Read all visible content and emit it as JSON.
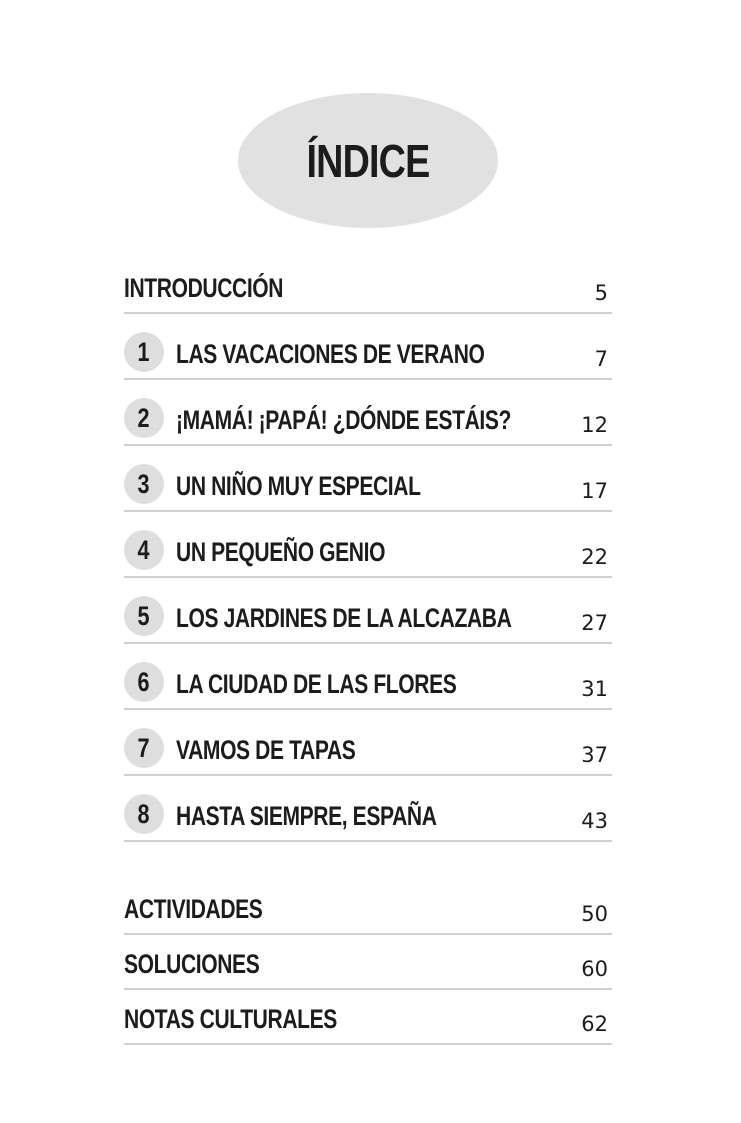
{
  "title": "ÍNDICE",
  "intro": {
    "label": "INTRODUCCIÓN",
    "page": "5"
  },
  "chapters": [
    {
      "number": "1",
      "label": "LAS VACACIONES DE VERANO",
      "page": "7"
    },
    {
      "number": "2",
      "label": "¡MAMÁ! ¡PAPÁ! ¿DÓNDE ESTÁIS?",
      "page": "12"
    },
    {
      "number": "3",
      "label": "UN NIÑO MUY ESPECIAL",
      "page": "17"
    },
    {
      "number": "4",
      "label": "UN PEQUEÑO GENIO",
      "page": "22"
    },
    {
      "number": "5",
      "label": "LOS JARDINES DE LA ALCAZABA",
      "page": "27"
    },
    {
      "number": "6",
      "label": "LA CIUDAD DE LAS FLORES",
      "page": "31"
    },
    {
      "number": "7",
      "label": "VAMOS DE TAPAS",
      "page": "37"
    },
    {
      "number": "8",
      "label": "HASTA SIEMPRE, ESPAÑA",
      "page": "43"
    }
  ],
  "extras": [
    {
      "label": "ACTIVIDADES",
      "page": "50"
    },
    {
      "label": "SOLUCIONES",
      "page": "60"
    },
    {
      "label": "NOTAS CULTURALES",
      "page": "62"
    }
  ],
  "colors": {
    "oval": "#e1e1e1",
    "circle": "#dedede",
    "rule": "#cfcfcf",
    "text": "#1c1c1c"
  }
}
